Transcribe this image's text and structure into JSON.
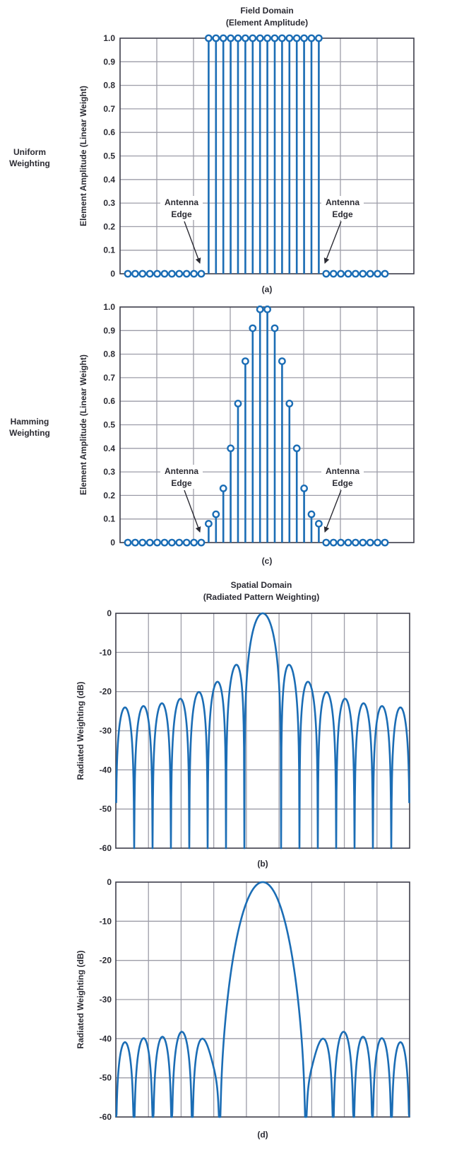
{
  "row_labels": {
    "uniform": [
      "Uniform",
      "Weighting"
    ],
    "hamming": [
      "Hamming",
      "Weighting"
    ]
  },
  "field_domain_title": [
    "Field Domain",
    "(Element Amplitude)"
  ],
  "spatial_domain_title": [
    "Spatial Domain",
    "(Radiated Pattern Weighting)"
  ],
  "colors": {
    "series": "#1b6db5",
    "grid": "#9d9da8",
    "axis": "#3d3d4a",
    "annotation": "#2b2b33"
  },
  "chart_data": [
    {
      "id": "a",
      "type": "stem",
      "caption": "(a)",
      "ylabel": "Element Amplitude (Linear Weight)",
      "ylim": [
        0,
        1.0
      ],
      "yticks": [
        "0",
        "0.1",
        "0.2",
        "0.3",
        "0.4",
        "0.5",
        "0.6",
        "0.7",
        "0.8",
        "0.9",
        "1.0"
      ],
      "grid": true,
      "values": [
        0,
        0,
        0,
        0,
        0,
        0,
        0,
        0,
        0,
        0,
        0,
        1,
        1,
        1,
        1,
        1,
        1,
        1,
        1,
        1,
        1,
        1,
        1,
        1,
        1,
        1,
        1,
        0,
        0,
        0,
        0,
        0,
        0,
        0,
        0,
        0
      ],
      "annotations": [
        {
          "lines": [
            "Antenna",
            "Edge"
          ],
          "side": "left"
        },
        {
          "lines": [
            "Antenna",
            "Edge"
          ],
          "side": "right"
        }
      ]
    },
    {
      "id": "c",
      "type": "stem",
      "caption": "(c)",
      "ylabel": "Element Amplitude (Linear Weight)",
      "ylim": [
        0,
        1.0
      ],
      "yticks": [
        "0",
        "0.1",
        "0.2",
        "0.3",
        "0.4",
        "0.5",
        "0.6",
        "0.7",
        "0.8",
        "0.9",
        "1.0"
      ],
      "grid": true,
      "values": [
        0,
        0,
        0,
        0,
        0,
        0,
        0,
        0,
        0,
        0,
        0,
        0.08,
        0.12,
        0.23,
        0.4,
        0.59,
        0.77,
        0.91,
        0.99,
        0.99,
        0.91,
        0.77,
        0.59,
        0.4,
        0.23,
        0.12,
        0.08,
        0,
        0,
        0,
        0,
        0,
        0,
        0,
        0,
        0
      ],
      "annotations": [
        {
          "lines": [
            "Antenna",
            "Edge"
          ],
          "side": "left"
        },
        {
          "lines": [
            "Antenna",
            "Edge"
          ],
          "side": "right"
        }
      ]
    },
    {
      "id": "b",
      "type": "line",
      "caption": "(b)",
      "ylabel": "Radiated Weighting (dB)",
      "ylim": [
        -60,
        0
      ],
      "yticks": [
        "-60",
        "-50",
        "-40",
        "-30",
        "-20",
        "-10",
        "0"
      ],
      "grid": true,
      "pattern_of": "a",
      "lobe_peaks_db": [
        -24.8,
        -24.3,
        -23.6,
        -22.5,
        -20.8,
        -18.2,
        -13.8,
        0,
        -13.8,
        -18.2,
        -20.8,
        -22.5,
        -23.6,
        -24.3,
        -24.8
      ]
    },
    {
      "id": "d",
      "type": "line",
      "caption": "(d)",
      "ylabel": "Radiated Weighting (dB)",
      "ylim": [
        -60,
        0
      ],
      "yticks": [
        "-60",
        "-50",
        "-40",
        "-30",
        "-20",
        "-10",
        "0"
      ],
      "grid": true,
      "pattern_of": "c",
      "lobe_peaks_db": [
        -40.3,
        -40.2,
        -39.8,
        -39.6,
        -40,
        0,
        -40,
        -39.6,
        -39.8,
        -40.2,
        -40.3
      ]
    }
  ]
}
